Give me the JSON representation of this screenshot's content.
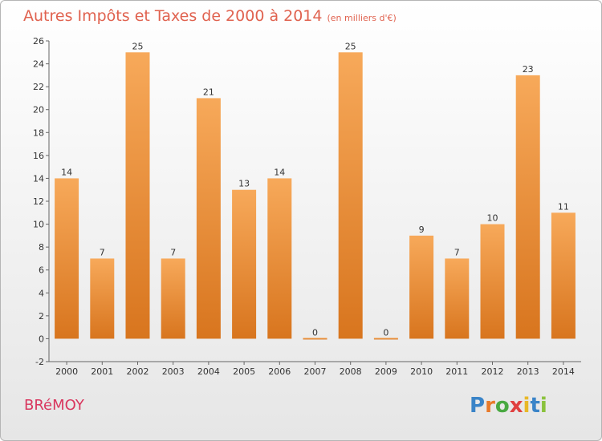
{
  "header": {
    "title": "Autres Impôts et Taxes de 2000 à 2014",
    "unit": "(en milliers d'€)"
  },
  "footer": {
    "town": "BRéMOY",
    "logo_letters": [
      "P",
      "r",
      "o",
      "x",
      "i",
      "t",
      "i"
    ],
    "logo_colors": [
      "#3a84c8",
      "#e87a2a",
      "#49a942",
      "#e04040",
      "#e8b828",
      "#3a84c8",
      "#8ac23c"
    ]
  },
  "colors": {
    "bar_top": "#f7a95a",
    "bar_bottom": "#d8751e",
    "title": "#e0624f",
    "town": "#d9365e"
  },
  "chart_data": {
    "type": "bar",
    "categories": [
      "2000",
      "2001",
      "2002",
      "2003",
      "2004",
      "2005",
      "2006",
      "2007",
      "2008",
      "2009",
      "2010",
      "2011",
      "2012",
      "2013",
      "2014"
    ],
    "values": [
      14,
      7,
      25,
      7,
      21,
      13,
      14,
      0,
      25,
      0,
      9,
      7,
      10,
      23,
      11
    ],
    "title": "Autres Impôts et Taxes de 2000 à 2014",
    "subtitle": "(en milliers d'€)",
    "xlabel": "",
    "ylabel": "",
    "ylim": [
      -2,
      26
    ],
    "yticks": [
      -2,
      0,
      2,
      4,
      6,
      8,
      10,
      12,
      14,
      16,
      18,
      20,
      22,
      24,
      26
    ],
    "grid": false,
    "legend": "none"
  }
}
